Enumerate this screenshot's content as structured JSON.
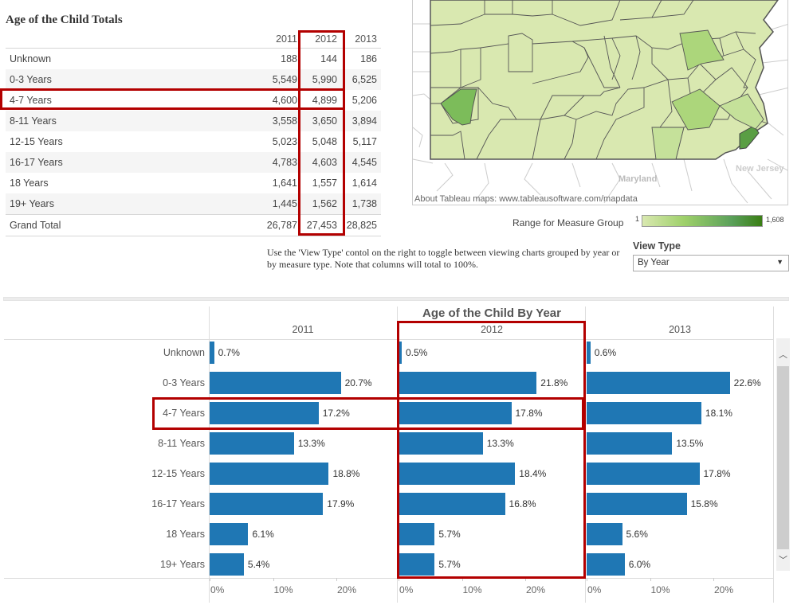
{
  "table": {
    "title": "Age of the Child Totals",
    "columns": [
      "2011",
      "2012",
      "2013"
    ],
    "rows": [
      {
        "label": "Unknown",
        "values": [
          "188",
          "144",
          "186"
        ]
      },
      {
        "label": "0-3 Years",
        "values": [
          "5,549",
          "5,990",
          "6,525"
        ]
      },
      {
        "label": "4-7 Years",
        "values": [
          "4,600",
          "4,899",
          "5,206"
        ]
      },
      {
        "label": "8-11 Years",
        "values": [
          "3,558",
          "3,650",
          "3,894"
        ]
      },
      {
        "label": "12-15 Years",
        "values": [
          "5,023",
          "5,048",
          "5,117"
        ]
      },
      {
        "label": "16-17 Years",
        "values": [
          "4,783",
          "4,603",
          "4,545"
        ]
      },
      {
        "label": "18 Years",
        "values": [
          "1,641",
          "1,557",
          "1,614"
        ]
      },
      {
        "label": "19+ Years",
        "values": [
          "1,445",
          "1,562",
          "1,738"
        ]
      }
    ],
    "total": {
      "label": "Grand Total",
      "values": [
        "26,787",
        "27,453",
        "28,825"
      ]
    }
  },
  "map": {
    "labels": {
      "maryland": "Maryland",
      "new_jersey": "New Jersey"
    },
    "attribution": "About Tableau maps: www.tableausoftware.com/mapdata",
    "legend": {
      "label": "Range for  Measure Group",
      "min": "1",
      "max": "1,608",
      "color_low": "#d9e8b0",
      "color_high": "#3a7e14"
    }
  },
  "instructions": "Use the 'View Type' contol on the right to toggle between viewing charts grouped by year or by measure type.  Note that columns will total to 100%.",
  "view_type": {
    "label": "View Type",
    "value": "By Year"
  },
  "highlight_color": "#b30000",
  "chart_data": {
    "type": "bar",
    "title": "Age of the Child By Year",
    "categories": [
      "Unknown",
      "0-3 Years",
      "4-7 Years",
      "8-11 Years",
      "12-15 Years",
      "16-17 Years",
      "18 Years",
      "19+ Years"
    ],
    "series": [
      {
        "name": "2011",
        "values": [
          0.7,
          20.7,
          17.2,
          13.3,
          18.8,
          17.9,
          6.1,
          5.4
        ],
        "labels": [
          "0.7%",
          "20.7%",
          "17.2%",
          "13.3%",
          "18.8%",
          "17.9%",
          "6.1%",
          "5.4%"
        ]
      },
      {
        "name": "2012",
        "values": [
          0.5,
          21.8,
          17.8,
          13.3,
          18.4,
          16.8,
          5.7,
          5.7
        ],
        "labels": [
          "0.5%",
          "21.8%",
          "17.8%",
          "13.3%",
          "18.4%",
          "16.8%",
          "5.7%",
          "5.7%"
        ]
      },
      {
        "name": "2013",
        "values": [
          0.6,
          22.6,
          18.1,
          13.5,
          17.8,
          15.8,
          5.6,
          6.0
        ],
        "labels": [
          "0.6%",
          "22.6%",
          "18.1%",
          "13.5%",
          "17.8%",
          "15.8%",
          "5.6%",
          "6.0%"
        ]
      }
    ],
    "xticks": [
      "0%",
      "10%",
      "20%"
    ],
    "xlim": [
      0,
      29
    ],
    "bar_color": "#1f77b4",
    "orientation": "horizontal"
  }
}
